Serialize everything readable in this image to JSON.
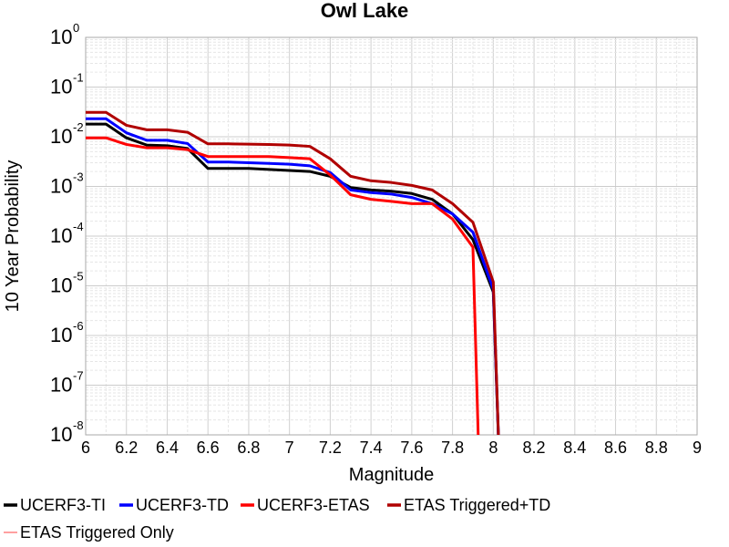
{
  "chart_data": {
    "type": "line",
    "title": "Owl Lake",
    "xlabel": "Magnitude",
    "ylabel": "10 Year Probability",
    "xlim": [
      6,
      9
    ],
    "ylim": [
      1e-08,
      1
    ],
    "yscale": "log",
    "grid": true,
    "legend_position": "bottom",
    "x_ticks": [
      "6",
      "6.2",
      "6.4",
      "6.6",
      "6.8",
      "7",
      "7.2",
      "7.4",
      "7.6",
      "7.8",
      "8",
      "8.2",
      "8.4",
      "8.6",
      "8.8",
      "9"
    ],
    "y_ticks": [
      {
        "base": "10",
        "exp": "0"
      },
      {
        "base": "10",
        "exp": "-1"
      },
      {
        "base": "10",
        "exp": "-2"
      },
      {
        "base": "10",
        "exp": "-3"
      },
      {
        "base": "10",
        "exp": "-4"
      },
      {
        "base": "10",
        "exp": "-5"
      },
      {
        "base": "10",
        "exp": "-6"
      },
      {
        "base": "10",
        "exp": "-7"
      },
      {
        "base": "10",
        "exp": "-8"
      }
    ],
    "series": [
      {
        "name": "UCERF3-TI",
        "color": "#000000",
        "x": [
          6.0,
          6.1,
          6.2,
          6.3,
          6.4,
          6.5,
          6.6,
          6.7,
          6.8,
          6.9,
          7.0,
          7.1,
          7.2,
          7.3,
          7.4,
          7.5,
          7.6,
          7.7,
          7.8,
          7.9,
          8.0,
          8.03
        ],
        "y": [
          0.018,
          0.018,
          0.0095,
          0.0068,
          0.0066,
          0.0058,
          0.0023,
          0.0023,
          0.0023,
          0.0022,
          0.0021,
          0.002,
          0.0016,
          0.00095,
          0.00085,
          0.0008,
          0.00072,
          0.00055,
          0.00028,
          8.5e-05,
          7.5e-06,
          1e-09
        ]
      },
      {
        "name": "UCERF3-TD",
        "color": "#0000ff",
        "x": [
          6.0,
          6.1,
          6.2,
          6.3,
          6.4,
          6.5,
          6.6,
          6.7,
          6.8,
          6.9,
          7.0,
          7.1,
          7.2,
          7.3,
          7.4,
          7.5,
          7.6,
          7.7,
          7.8,
          7.9,
          8.0,
          8.03
        ],
        "y": [
          0.023,
          0.023,
          0.012,
          0.0085,
          0.0085,
          0.0073,
          0.0031,
          0.0031,
          0.003,
          0.0029,
          0.0028,
          0.0026,
          0.0019,
          0.00085,
          0.00075,
          0.0007,
          0.0006,
          0.00045,
          0.00028,
          0.00012,
          8.5e-06,
          1e-09
        ]
      },
      {
        "name": "UCERF3-ETAS",
        "color": "#ff0000",
        "x": [
          6.0,
          6.1,
          6.2,
          6.3,
          6.4,
          6.5,
          6.6,
          6.7,
          6.8,
          6.9,
          7.0,
          7.1,
          7.2,
          7.3,
          7.4,
          7.5,
          7.6,
          7.7,
          7.8,
          7.9,
          7.93
        ],
        "y": [
          0.0095,
          0.0095,
          0.007,
          0.006,
          0.006,
          0.0055,
          0.004,
          0.004,
          0.004,
          0.004,
          0.0038,
          0.0036,
          0.0017,
          0.00068,
          0.00055,
          0.0005,
          0.00045,
          0.00045,
          0.00022,
          6e-05,
          1e-09
        ]
      },
      {
        "name": "ETAS Triggered+TD",
        "color": "#b00000",
        "x": [
          6.0,
          6.1,
          6.2,
          6.3,
          6.4,
          6.5,
          6.6,
          6.7,
          6.8,
          6.9,
          7.0,
          7.1,
          7.2,
          7.3,
          7.4,
          7.5,
          7.6,
          7.7,
          7.8,
          7.9,
          8.0,
          8.03
        ],
        "y": [
          0.031,
          0.031,
          0.017,
          0.0138,
          0.0138,
          0.0123,
          0.0072,
          0.0072,
          0.0071,
          0.007,
          0.0068,
          0.0064,
          0.0036,
          0.0016,
          0.0013,
          0.0012,
          0.00105,
          0.00085,
          0.00045,
          0.00019,
          1.2e-05,
          1e-09
        ]
      },
      {
        "name": "ETAS Triggered Only",
        "color": "#ff8080",
        "x": [],
        "y": []
      }
    ]
  }
}
